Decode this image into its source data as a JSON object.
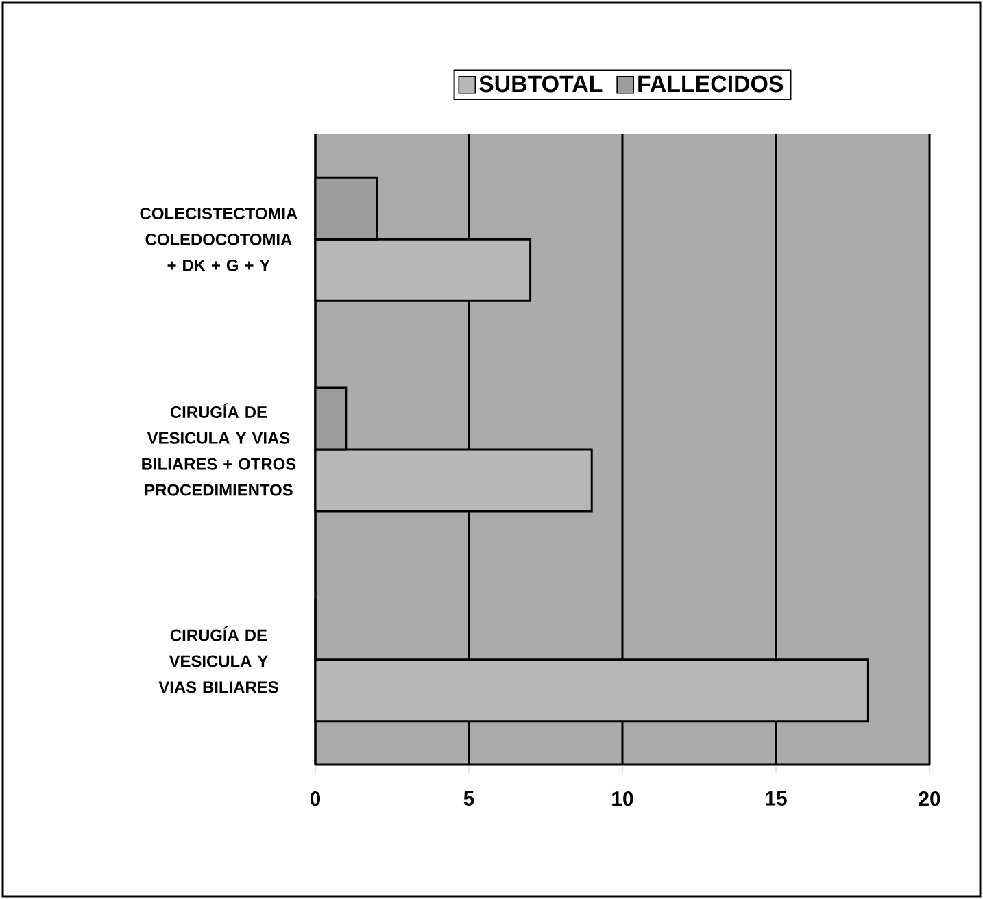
{
  "chart_data": {
    "type": "bar",
    "orientation": "horizontal",
    "categories": [
      "COLECISTECTOMIA COLEDOCOTOMIA + DK + G + Y",
      "CIRUGÍA DE VESICULA Y VIAS BILIARES + OTROS PROCEDIMIENTOS",
      "CIRUGÍA DE VESICULA Y VIAS BILIARES"
    ],
    "series": [
      {
        "name": "SUBTOTAL",
        "color": "#b8b8b8",
        "values": [
          7,
          9,
          18
        ]
      },
      {
        "name": "FALLECIDOS",
        "color": "#9c9c9c",
        "values": [
          2,
          1,
          0
        ]
      }
    ],
    "xlim": [
      0,
      20
    ],
    "xticks": [
      0,
      5,
      10,
      15,
      20
    ],
    "grid": "x",
    "legend": "top"
  }
}
